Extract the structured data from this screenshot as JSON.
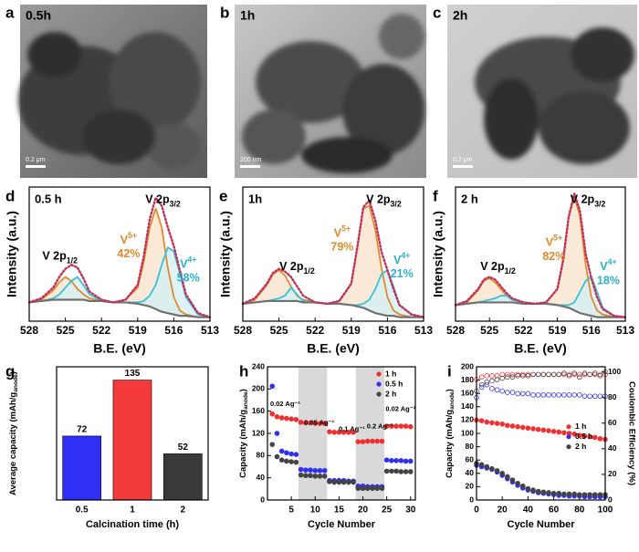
{
  "images": [
    {
      "letter": "a",
      "caption": "0.5h",
      "scale": "0.2 μm"
    },
    {
      "letter": "b",
      "caption": "1h",
      "scale": "200 nm"
    },
    {
      "letter": "c",
      "caption": "2h",
      "scale": "0.2 μm"
    }
  ],
  "chart_data": [
    {
      "type": "line",
      "panel": "d",
      "label": "0.5 h",
      "xlabel": "B.E. (eV)",
      "ylabel": "Intensity (a.u.)",
      "x": [
        528,
        527,
        526,
        525.5,
        525,
        524.5,
        524,
        523.5,
        523,
        522,
        521,
        520,
        519,
        518.5,
        518,
        517.5,
        517,
        516.5,
        516,
        515.5,
        515,
        514,
        513
      ],
      "xlim": [
        528,
        513
      ],
      "xticks": [
        528,
        525,
        522,
        519,
        516,
        513
      ],
      "ylim": [
        0,
        100
      ],
      "series": [
        {
          "color": "#e08a2a",
          "fill": "#f7e3cc",
          "values": [
            14,
            16,
            23,
            29,
            33,
            30,
            24,
            20,
            17,
            15,
            14,
            16,
            25,
            44,
            70,
            84,
            70,
            40,
            18,
            8,
            5,
            3,
            3
          ]
        },
        {
          "color": "#3cc0d8",
          "fill": "#d5f0f5",
          "values": [
            14,
            15,
            17,
            20,
            25,
            30,
            33,
            27,
            20,
            15,
            14,
            14,
            14,
            15,
            19,
            27,
            42,
            55,
            52,
            36,
            18,
            5,
            3
          ]
        },
        {
          "color": "#707070",
          "values": [
            14,
            15,
            16,
            16,
            16,
            16,
            16,
            16,
            15,
            15,
            14,
            14,
            13,
            12,
            11,
            9,
            7,
            6,
            5,
            4,
            4,
            3,
            3
          ]
        },
        {
          "color": "#c0305a",
          "style": "dotted",
          "values": [
            14,
            17,
            25,
            33,
            39,
            42,
            40,
            32,
            22,
            16,
            14,
            16,
            27,
            48,
            76,
            92,
            86,
            70,
            56,
            38,
            20,
            6,
            3
          ]
        }
      ],
      "annotations": [
        {
          "base": "V 2p",
          "sub": "3/2",
          "color": "#000000"
        },
        {
          "base": "V 2p",
          "sub": "1/2",
          "color": "#000000"
        },
        {
          "base": "V",
          "sup": "5+",
          "note": "42%",
          "color": "#e08a2a"
        },
        {
          "base": "V",
          "sup": "4+",
          "note": "58%",
          "color": "#2ab0cc"
        }
      ]
    },
    {
      "type": "line",
      "panel": "e",
      "label": "1h",
      "xlabel": "B.E. (eV)",
      "ylabel": "Intensity (a.u.)",
      "x": [
        528,
        527,
        526,
        525.5,
        525,
        524.5,
        524,
        523.5,
        523,
        522,
        521,
        520,
        519,
        518.5,
        518,
        517.5,
        517,
        516.5,
        516,
        515.5,
        515,
        514,
        513
      ],
      "xlim": [
        528,
        513
      ],
      "xticks": [
        528,
        525,
        522,
        519,
        516,
        513
      ],
      "ylim": [
        0,
        100
      ],
      "series": [
        {
          "color": "#e08a2a",
          "fill": "#f7e3cc",
          "values": [
            13,
            16,
            27,
            35,
            38,
            34,
            26,
            19,
            16,
            14,
            13,
            15,
            28,
            55,
            84,
            86,
            68,
            40,
            18,
            8,
            5,
            3,
            3
          ]
        },
        {
          "color": "#3cc0d8",
          "fill": "#d5f0f5",
          "values": [
            13,
            14,
            15,
            16,
            17,
            19,
            25,
            20,
            15,
            14,
            13,
            13,
            12,
            12,
            13,
            16,
            24,
            35,
            38,
            26,
            12,
            5,
            3
          ]
        },
        {
          "color": "#707070",
          "values": [
            13,
            14,
            15,
            15,
            15,
            15,
            15,
            15,
            14,
            14,
            13,
            13,
            12,
            11,
            10,
            8,
            6,
            5,
            4,
            4,
            3,
            3,
            3
          ]
        },
        {
          "color": "#c0305a",
          "style": "dotted",
          "values": [
            13,
            17,
            28,
            36,
            39,
            37,
            33,
            26,
            19,
            14,
            13,
            15,
            28,
            55,
            85,
            90,
            75,
            52,
            38,
            24,
            12,
            5,
            3
          ]
        }
      ],
      "annotations": [
        {
          "base": "V 2p",
          "sub": "3/2",
          "color": "#000000"
        },
        {
          "base": "V 2p",
          "sub": "1/2",
          "color": "#000000"
        },
        {
          "base": "V",
          "sup": "5+",
          "note": "79%",
          "color": "#e08a2a"
        },
        {
          "base": "V",
          "sup": "4+",
          "note": "21%",
          "color": "#2ab0cc"
        }
      ]
    },
    {
      "type": "line",
      "panel": "f",
      "label": "2 h",
      "xlabel": "B.E. (eV)",
      "ylabel": "Intensity (a.u.)",
      "x": [
        528,
        527,
        526,
        525.5,
        525,
        524.5,
        524,
        523.5,
        523,
        522,
        521,
        520,
        519,
        518.5,
        518,
        517.5,
        517,
        516.5,
        516,
        515.5,
        515,
        514,
        513
      ],
      "xlim": [
        528,
        513
      ],
      "xticks": [
        528,
        525,
        522,
        519,
        516,
        513
      ],
      "ylim": [
        0,
        100
      ],
      "series": [
        {
          "color": "#e08a2a",
          "fill": "#f7e3cc",
          "values": [
            12,
            14,
            23,
            30,
            32,
            29,
            24,
            19,
            16,
            14,
            13,
            14,
            24,
            45,
            78,
            93,
            78,
            42,
            18,
            8,
            5,
            3,
            3
          ]
        },
        {
          "color": "#3cc0d8",
          "fill": "#d5f0f5",
          "values": [
            12,
            13,
            14,
            15,
            16,
            17,
            19,
            19,
            16,
            14,
            13,
            13,
            12,
            12,
            12,
            14,
            22,
            30,
            33,
            22,
            10,
            4,
            3
          ]
        },
        {
          "color": "#707070",
          "values": [
            12,
            13,
            14,
            14,
            14,
            14,
            14,
            14,
            14,
            13,
            13,
            13,
            12,
            11,
            10,
            8,
            6,
            5,
            4,
            3,
            3,
            3,
            3
          ]
        },
        {
          "color": "#c0305a",
          "style": "dotted",
          "values": [
            12,
            15,
            24,
            31,
            33,
            31,
            26,
            21,
            17,
            14,
            13,
            14,
            24,
            45,
            78,
            95,
            82,
            50,
            32,
            18,
            9,
            4,
            3
          ]
        }
      ],
      "annotations": [
        {
          "base": "V 2p",
          "sub": "3/2",
          "color": "#000000"
        },
        {
          "base": "V 2p",
          "sub": "1/2",
          "color": "#000000"
        },
        {
          "base": "V",
          "sup": "5+",
          "note": "82%",
          "color": "#e08a2a"
        },
        {
          "base": "V",
          "sup": "4+",
          "note": "18%",
          "color": "#2ab0cc"
        }
      ]
    },
    {
      "type": "bar",
      "panel": "g",
      "xlabel": "Calcination time (h)",
      "ylabel": {
        "base": "Average capacity (mAh/g",
        "sub": "anode",
        "end": ")"
      },
      "categories": [
        "0.5",
        "1",
        "2"
      ],
      "values": [
        72,
        135,
        52
      ],
      "colors": [
        "#2f2ff5",
        "#f53a3a",
        "#3a3a3a"
      ],
      "ylim": [
        0,
        150
      ]
    },
    {
      "type": "scatter",
      "panel": "h",
      "xlabel": "Cycle Number",
      "ylabel": {
        "base": "Capacity (mAh/g",
        "sub": "anode",
        "end": ")"
      },
      "x": [
        1,
        2,
        3,
        4,
        5,
        6,
        7,
        8,
        9,
        10,
        11,
        12,
        13,
        14,
        15,
        16,
        17,
        18,
        19,
        20,
        21,
        22,
        23,
        24,
        25,
        26,
        27,
        28,
        29,
        30
      ],
      "xlim": [
        0,
        31
      ],
      "xticks": [
        5,
        10,
        15,
        20,
        25,
        30
      ],
      "ylim": [
        0,
        240
      ],
      "yticks": [
        0,
        40,
        80,
        120,
        160,
        200,
        240
      ],
      "shaded_x": [
        [
          6.5,
          12.5
        ],
        [
          18.5,
          24.5
        ]
      ],
      "rates": [
        "0.02 Ag⁻¹",
        "0.05 Ag⁻¹",
        "0.1 Ag⁻¹",
        "0.2 Ag⁻¹",
        "0.02 Ag⁻¹"
      ],
      "legend": "upper right",
      "series": [
        {
          "name": "1 h",
          "color": "#f03030",
          "values": [
            155,
            150,
            148,
            147,
            146,
            145,
            140,
            139,
            139,
            138,
            138,
            138,
            123,
            122,
            122,
            122,
            122,
            122,
            105,
            105,
            106,
            106,
            106,
            106,
            133,
            133,
            133,
            133,
            133,
            132
          ]
        },
        {
          "name": "0.5 h",
          "color": "#3030f0",
          "values": [
            205,
            120,
            88,
            85,
            83,
            82,
            55,
            54,
            54,
            53,
            53,
            53,
            35,
            35,
            35,
            35,
            34,
            34,
            25,
            25,
            24,
            24,
            24,
            24,
            72,
            71,
            71,
            71,
            70,
            70
          ]
        },
        {
          "name": "2 h",
          "color": "#444444",
          "values": [
            100,
            78,
            72,
            70,
            69,
            68,
            45,
            44,
            44,
            43,
            43,
            43,
            33,
            32,
            32,
            32,
            32,
            32,
            21,
            21,
            21,
            21,
            21,
            21,
            52,
            52,
            52,
            51,
            51,
            51
          ]
        }
      ]
    },
    {
      "type": "scatter",
      "panel": "i",
      "xlabel": "Cycle Number",
      "ylabel": {
        "base": "Capacity (mAh/g",
        "sub": "anode",
        "end": ")"
      },
      "y2label": "Coulombic Efficiency (%)",
      "x": [
        0,
        4,
        8,
        12,
        16,
        20,
        24,
        28,
        32,
        36,
        40,
        44,
        48,
        52,
        56,
        60,
        64,
        68,
        72,
        76,
        80,
        84,
        88,
        92,
        96,
        100
      ],
      "xlim": [
        0,
        100
      ],
      "xticks": [
        0,
        20,
        40,
        60,
        80,
        100
      ],
      "ylim": [
        0,
        200
      ],
      "yticks": [
        0,
        20,
        40,
        60,
        80,
        100,
        120,
        140,
        160,
        180,
        200
      ],
      "y2lim": [
        0,
        104
      ],
      "y2ticks": [
        0,
        20,
        40,
        60,
        80,
        100
      ],
      "legend": "right",
      "series": [
        {
          "name": "1 h",
          "color": "#f03030",
          "values": [
            120,
            119,
            117,
            116,
            115,
            114,
            112,
            111,
            110,
            109,
            108,
            107,
            106,
            105,
            104,
            103,
            102,
            101,
            100,
            99,
            97,
            96,
            95,
            94,
            92,
            91
          ]
        },
        {
          "name": "0.5 h",
          "color": "#3030f0",
          "values": [
            52,
            50,
            48,
            46,
            42,
            37,
            32,
            27,
            22,
            18,
            15,
            13,
            11,
            10,
            9,
            8,
            7,
            7,
            6,
            6,
            6,
            5,
            5,
            5,
            5,
            5
          ]
        },
        {
          "name": "2 h",
          "color": "#444444",
          "values": [
            55,
            53,
            50,
            47,
            44,
            40,
            35,
            30,
            25,
            21,
            17,
            15,
            13,
            12,
            11,
            10,
            10,
            9,
            9,
            9,
            8,
            8,
            8,
            8,
            8,
            8
          ]
        },
        {
          "color": "#f03030",
          "marker": "hollow",
          "axis": "y2",
          "values": [
            94,
            96,
            97,
            97,
            97,
            98,
            98,
            98,
            98,
            98,
            98,
            98,
            98,
            98,
            98,
            98,
            98,
            98,
            98,
            98,
            98,
            98,
            98,
            98,
            98,
            98
          ]
        },
        {
          "color": "#3030f0",
          "marker": "hollow",
          "axis": "y2",
          "values": [
            80,
            88,
            90,
            87,
            86,
            85,
            84,
            84,
            83,
            83,
            83,
            82,
            82,
            82,
            82,
            82,
            82,
            82,
            82,
            82,
            82,
            81,
            81,
            81,
            81,
            81
          ]
        },
        {
          "color": "#444444",
          "marker": "hollow",
          "axis": "y2",
          "values": [
            85,
            90,
            92,
            93,
            94,
            95,
            96,
            96,
            97,
            97,
            97,
            98,
            98,
            98,
            98,
            98,
            98,
            99,
            97,
            99,
            96,
            99,
            98,
            99,
            97,
            100
          ]
        }
      ]
    }
  ]
}
